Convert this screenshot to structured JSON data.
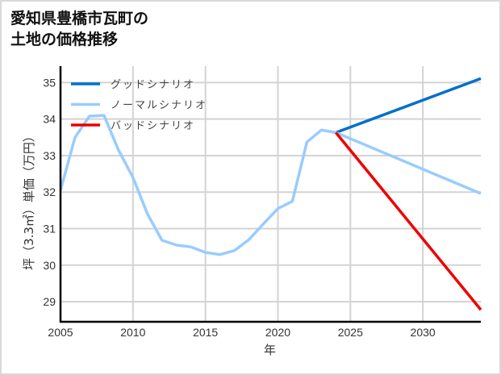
{
  "title": {
    "line1": "愛知県豊橋市瓦町の",
    "line2": "土地の価格推移"
  },
  "chart_data": {
    "type": "line",
    "title": "愛知県豊橋市瓦町の土地の価格推移",
    "xlabel": "年",
    "ylabel": "坪（3.3㎡）単価（万円）",
    "xlim": [
      2005,
      2034
    ],
    "ylim": [
      28.45,
      35.45
    ],
    "x_ticks": [
      2005,
      2010,
      2015,
      2020,
      2025,
      2030
    ],
    "y_ticks": [
      29,
      30,
      31,
      32,
      33,
      34,
      35
    ],
    "grid": true,
    "legend_position": "upper left",
    "series": [
      {
        "name": "グッドシナリオ",
        "color": "#0070c8",
        "x": [
          2024,
          2034
        ],
        "values": [
          33.63,
          35.11
        ]
      },
      {
        "name": "ノーマルシナリオ",
        "color": "#99ccff",
        "x": [
          2005,
          2006,
          2007,
          2008,
          2009,
          2010,
          2011,
          2012,
          2013,
          2014,
          2015,
          2016,
          2017,
          2018,
          2019,
          2020,
          2021,
          2022,
          2023,
          2024,
          2034
        ],
        "values": [
          32.05,
          33.5,
          34.08,
          34.1,
          33.15,
          32.4,
          31.4,
          30.68,
          30.55,
          30.5,
          30.35,
          30.29,
          30.4,
          30.7,
          31.13,
          31.55,
          31.75,
          33.37,
          33.7,
          33.63,
          31.96
        ]
      },
      {
        "name": "バッドシナリオ",
        "color": "#ee0000",
        "x": [
          2024,
          2034
        ],
        "values": [
          33.63,
          28.78
        ]
      }
    ]
  }
}
